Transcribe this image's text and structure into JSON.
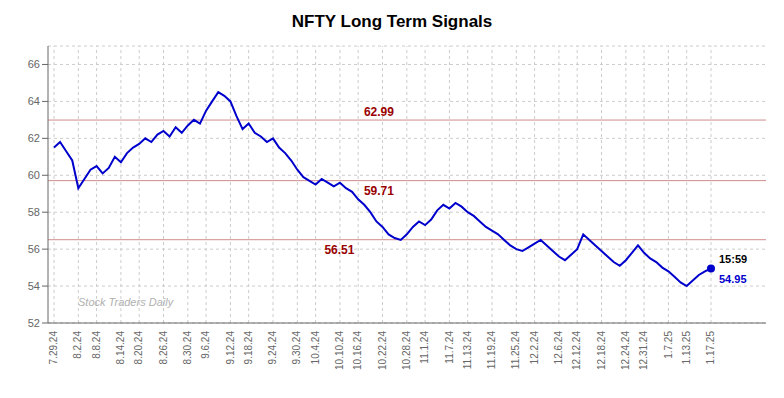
{
  "chart_data": {
    "type": "line",
    "title": "NFTY Long Term Signals",
    "categories": [
      "7.29.24",
      null,
      null,
      null,
      "8.2.24",
      null,
      null,
      "8.8.24",
      null,
      null,
      null,
      "8.14.24",
      null,
      null,
      "8.20.24",
      null,
      null,
      null,
      "8.26.24",
      null,
      null,
      null,
      "8.30.24",
      null,
      null,
      "9.6.24",
      null,
      null,
      null,
      "9.12.24",
      null,
      null,
      "9.18.24",
      null,
      null,
      null,
      "9.24.24",
      null,
      null,
      null,
      "9.30.24",
      null,
      null,
      "10.4.24",
      null,
      null,
      null,
      "10.10.24",
      null,
      null,
      "10.16.24",
      null,
      null,
      null,
      "10.22.24",
      null,
      null,
      null,
      "10.28.24",
      null,
      null,
      "11.1.24",
      null,
      null,
      null,
      "11.7.24",
      null,
      null,
      "11.13.24",
      null,
      null,
      null,
      "11.19.24",
      null,
      null,
      null,
      "11.25.24",
      null,
      null,
      "12.2.24",
      null,
      null,
      null,
      "12.6.24",
      null,
      null,
      "12.12.24",
      null,
      null,
      null,
      "12.18.24",
      null,
      null,
      null,
      "12.24.24",
      null,
      null,
      "12.31.24",
      null,
      null,
      null,
      "1.7.25",
      null,
      null,
      "1.13.25",
      null,
      null,
      null,
      "1.17.25"
    ],
    "values": [
      61.5,
      61.8,
      61.3,
      60.8,
      59.3,
      59.8,
      60.3,
      60.5,
      60.1,
      60.4,
      61.0,
      60.7,
      61.2,
      61.5,
      61.7,
      62.0,
      61.8,
      62.2,
      62.4,
      62.1,
      62.6,
      62.3,
      62.7,
      63.0,
      62.8,
      63.5,
      64.0,
      64.5,
      64.3,
      64.0,
      63.2,
      62.5,
      62.8,
      62.3,
      62.1,
      61.8,
      62.0,
      61.5,
      61.2,
      60.8,
      60.3,
      59.9,
      59.7,
      59.5,
      59.8,
      59.6,
      59.4,
      59.6,
      59.3,
      59.1,
      58.7,
      58.4,
      58.0,
      57.5,
      57.2,
      56.8,
      56.6,
      56.5,
      56.8,
      57.2,
      57.5,
      57.3,
      57.6,
      58.1,
      58.4,
      58.2,
      58.5,
      58.3,
      58.0,
      57.8,
      57.5,
      57.2,
      57.0,
      56.8,
      56.5,
      56.2,
      56.0,
      55.9,
      56.1,
      56.3,
      56.5,
      56.2,
      55.9,
      55.6,
      55.4,
      55.7,
      56.0,
      56.8,
      56.5,
      56.2,
      55.9,
      55.6,
      55.3,
      55.1,
      55.4,
      55.8,
      56.2,
      55.8,
      55.5,
      55.3,
      55.0,
      54.8,
      54.5,
      54.2,
      54.0,
      54.3,
      54.6,
      54.8,
      54.95
    ],
    "color": "#0000cc",
    "ylim": [
      52,
      67
    ],
    "yticks": [
      52,
      54,
      56,
      58,
      60,
      62,
      64,
      66
    ],
    "grid": true,
    "reference_lines": [
      {
        "value": 62.99,
        "color": "#990000"
      },
      {
        "value": 59.71,
        "color": "#990000"
      },
      {
        "value": 56.51,
        "color": "#990000"
      }
    ],
    "end_labels": [
      "15:59",
      "54.95"
    ],
    "watermark": {
      "text": "Stock Traders Daily",
      "color": "#b0b0b0"
    }
  }
}
